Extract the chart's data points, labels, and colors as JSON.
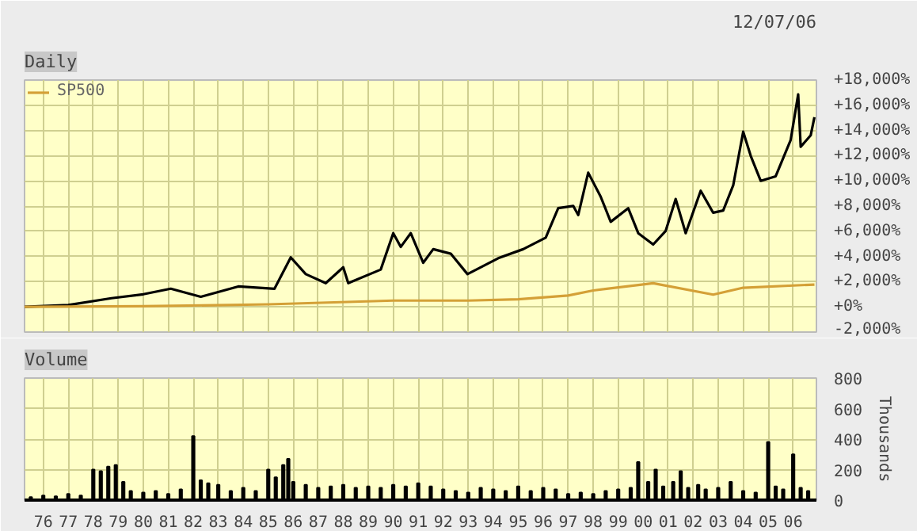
{
  "chart_data": [
    {
      "type": "line",
      "title": "Daily",
      "annotations": [
        "12/07/06"
      ],
      "legend": "top left",
      "grid": true,
      "tick_labels": "y",
      "marker": "none",
      "line_style": "solid",
      "xlim": [
        1975.25,
        2006.93
      ],
      "xticks": [
        1976,
        1977,
        1978,
        1979,
        1980,
        1981,
        1982,
        1983,
        1984,
        1985,
        1986,
        1987,
        1988,
        1989,
        1990,
        1991,
        1992,
        1993,
        1994,
        1995,
        1996,
        1997,
        1998,
        1999,
        2000,
        2001,
        2002,
        2003,
        2004,
        2005,
        2006
      ],
      "ylim": [
        -2000,
        18000
      ],
      "yticks": [
        {
          "value": -2000,
          "label": "-2,000%"
        },
        {
          "value": 0,
          "label": "+0%"
        },
        {
          "value": 2000,
          "label": "+2,000%"
        },
        {
          "value": 4000,
          "label": "+4,000%"
        },
        {
          "value": 6000,
          "label": "+6,000%"
        },
        {
          "value": 8000,
          "label": "+8,000%"
        },
        {
          "value": 10000,
          "label": "+10,000%"
        },
        {
          "value": 12000,
          "label": "+12,000%"
        },
        {
          "value": 14000,
          "label": "+14,000%"
        },
        {
          "value": 16000,
          "label": "+16,000%"
        },
        {
          "value": 18000,
          "label": "+18,000%"
        }
      ],
      "series": [
        {
          "color": "#000000",
          "x": [
            1975.25,
            1977.0,
            1978.73,
            1980.0,
            1981.1,
            1982.3,
            1983.8,
            1985.25,
            1985.9,
            1986.5,
            1987.3,
            1988.0,
            1988.2,
            1989.5,
            1990.0,
            1990.3,
            1990.7,
            1991.2,
            1991.6,
            1992.3,
            1992.97,
            1994.2,
            1995.2,
            1996.1,
            1996.6,
            1997.2,
            1997.4,
            1997.8,
            1998.3,
            1998.7,
            1999.4,
            1999.8,
            2000.4,
            2000.9,
            2001.3,
            2001.7,
            2002.3,
            2002.8,
            2003.2,
            2003.6,
            2004.0,
            2004.3,
            2004.7,
            2005.3,
            2005.9,
            2006.2,
            2006.3,
            2006.7,
            2006.85
          ],
          "values": [
            0,
            150,
            690,
            1000,
            1440,
            800,
            1620,
            1440,
            3930,
            2600,
            1880,
            3140,
            1880,
            2960,
            5850,
            4760,
            5850,
            3500,
            4580,
            4220,
            2600,
            3860,
            4580,
            5490,
            7830,
            8010,
            7290,
            10650,
            8740,
            6750,
            7830,
            5850,
            4950,
            6030,
            8560,
            5850,
            9210,
            7470,
            7650,
            9640,
            13900,
            11990,
            10000,
            10360,
            13250,
            16860,
            12710,
            13610,
            15050
          ]
        },
        {
          "name": "SP500",
          "color": "#d4a037",
          "x": [
            1975.25,
            1980.0,
            1985.0,
            1990.0,
            1993.0,
            1995.0,
            1997.0,
            1998.0,
            2000.4,
            2002.8,
            2004.0,
            2006.85
          ],
          "values": [
            0,
            50,
            200,
            500,
            500,
            600,
            900,
            1300,
            1880,
            970,
            1520,
            1770
          ]
        }
      ]
    },
    {
      "type": "bar",
      "title": "Volume",
      "ylabel": "Thousands",
      "grid": true,
      "xlim": [
        1975.25,
        2006.93
      ],
      "xticks": [
        {
          "value": 1976,
          "label": "76"
        },
        {
          "value": 1977,
          "label": "77"
        },
        {
          "value": 1978,
          "label": "78"
        },
        {
          "value": 1979,
          "label": "79"
        },
        {
          "value": 1980,
          "label": "80"
        },
        {
          "value": 1981,
          "label": "81"
        },
        {
          "value": 1982,
          "label": "82"
        },
        {
          "value": 1983,
          "label": "83"
        },
        {
          "value": 1984,
          "label": "84"
        },
        {
          "value": 1985,
          "label": "85"
        },
        {
          "value": 1986,
          "label": "86"
        },
        {
          "value": 1987,
          "label": "87"
        },
        {
          "value": 1988,
          "label": "88"
        },
        {
          "value": 1989,
          "label": "89"
        },
        {
          "value": 1990,
          "label": "90"
        },
        {
          "value": 1991,
          "label": "91"
        },
        {
          "value": 1992,
          "label": "92"
        },
        {
          "value": 1993,
          "label": "93"
        },
        {
          "value": 1994,
          "label": "94"
        },
        {
          "value": 1995,
          "label": "95"
        },
        {
          "value": 1996,
          "label": "96"
        },
        {
          "value": 1997,
          "label": "97"
        },
        {
          "value": 1998,
          "label": "98"
        },
        {
          "value": 1999,
          "label": "99"
        },
        {
          "value": 2000,
          "label": "00"
        },
        {
          "value": 2001,
          "label": "01"
        },
        {
          "value": 2002,
          "label": "02"
        },
        {
          "value": 2003,
          "label": "03"
        },
        {
          "value": 2004,
          "label": "04"
        },
        {
          "value": 2005,
          "label": "05"
        },
        {
          "value": 2006,
          "label": "06"
        }
      ],
      "ylim": [
        0,
        800
      ],
      "yticks": [
        0,
        200,
        400,
        600,
        800
      ],
      "series": [
        {
          "color": "#000000",
          "x": [
            1975.5,
            1976.0,
            1976.5,
            1977.0,
            1977.5,
            1978.0,
            1978.3,
            1978.6,
            1978.9,
            1979.2,
            1979.5,
            1980.0,
            1980.5,
            1981.0,
            1981.5,
            1982.0,
            1982.3,
            1982.6,
            1983.0,
            1983.5,
            1984.0,
            1984.5,
            1985.0,
            1985.3,
            1985.6,
            1985.8,
            1986.0,
            1986.5,
            1987.0,
            1987.5,
            1988.0,
            1988.5,
            1989.0,
            1989.5,
            1990.0,
            1990.5,
            1991.0,
            1991.5,
            1992.0,
            1992.5,
            1993.0,
            1993.5,
            1994.0,
            1994.5,
            1995.0,
            1995.5,
            1996.0,
            1996.5,
            1997.0,
            1997.5,
            1998.0,
            1998.5,
            1999.0,
            1999.5,
            1999.8,
            2000.2,
            2000.5,
            2000.8,
            2001.2,
            2001.5,
            2001.8,
            2002.2,
            2002.5,
            2003.0,
            2003.5,
            2004.0,
            2004.5,
            2005.0,
            2005.3,
            2005.6,
            2006.0,
            2006.3,
            2006.6
          ],
          "values": [
            20,
            30,
            25,
            40,
            30,
            200,
            190,
            220,
            230,
            120,
            60,
            50,
            60,
            40,
            70,
            420,
            130,
            110,
            100,
            60,
            80,
            60,
            200,
            150,
            230,
            270,
            120,
            100,
            80,
            90,
            100,
            80,
            90,
            80,
            100,
            90,
            110,
            90,
            70,
            60,
            50,
            80,
            70,
            60,
            90,
            60,
            80,
            70,
            40,
            50,
            40,
            60,
            70,
            80,
            250,
            120,
            200,
            90,
            120,
            190,
            80,
            100,
            70,
            80,
            120,
            60,
            50,
            380,
            90,
            70,
            300,
            80,
            60
          ]
        }
      ]
    }
  ]
}
